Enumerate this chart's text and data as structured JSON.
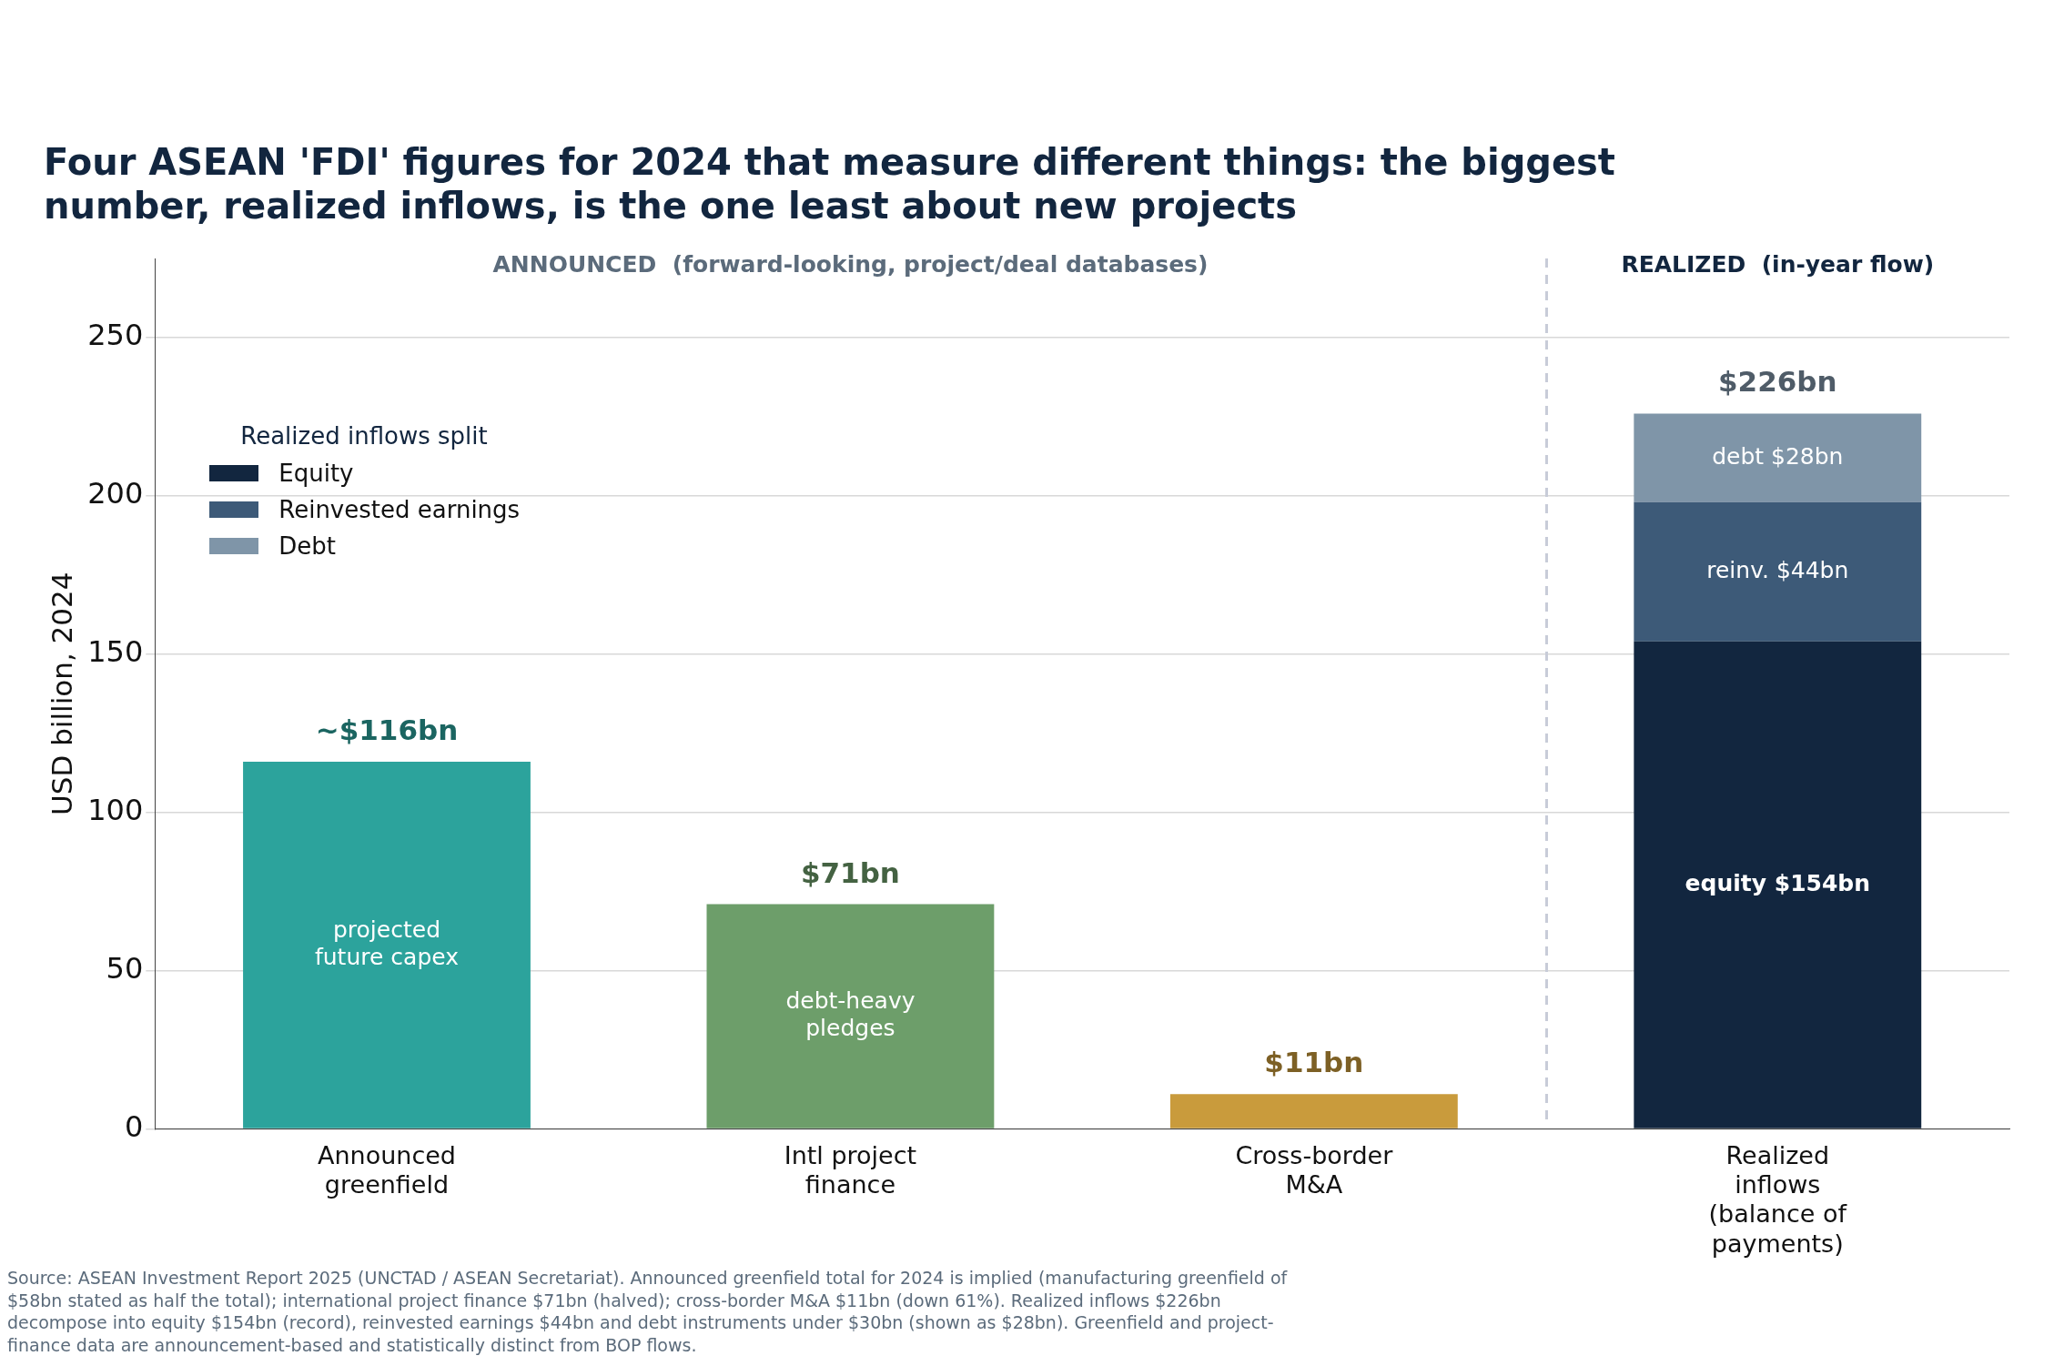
{
  "chart_data": {
    "type": "bar",
    "title": "Four ASEAN 'FDI' figures for 2024 that measure different things: the biggest number, realized inflows, is the one least about new projects",
    "ylabel": "USD billion, 2024",
    "legend_title": "Realized inflows split",
    "categories": [
      "Announced greenfield",
      "Intl project finance",
      "Cross-border M&A",
      "Realized inflows (balance of payments)"
    ],
    "series": [
      {
        "colors": [
          "#2ca39c",
          "#6d9e6a",
          "#c99b3c",
          "#2ca39c"
        ],
        "values": [
          116,
          71,
          11,
          null
        ]
      },
      {
        "name": "Equity",
        "color": "#12263f",
        "values": [
          null,
          null,
          null,
          154
        ],
        "value_labels": [
          null,
          null,
          null,
          "equity $154bn"
        ]
      },
      {
        "name": "Reinvested earnings",
        "color": "#3d5a78",
        "values": [
          null,
          null,
          null,
          44
        ],
        "value_labels": [
          null,
          null,
          null,
          "reinv. $44bn"
        ]
      },
      {
        "name": "Debt",
        "color": "#7f95a8",
        "values": [
          null,
          null,
          null,
          28
        ],
        "value_labels": [
          null,
          null,
          null,
          "debt $28bn"
        ]
      }
    ],
    "stacked": true,
    "totals": [
      "~$116bn",
      "$71bn",
      "$11bn",
      "$226bn"
    ],
    "ylim": [
      0,
      275
    ],
    "yticks": [
      0,
      50,
      100,
      150,
      200,
      250
    ],
    "grid": "y",
    "legend": "top left",
    "annotations": [
      "projected future capex",
      "debt-heavy pledges",
      "ANNOUNCED  (forward-looking, project/deal databases)",
      "REALIZED  (in-year flow)",
      "Source: ASEAN Investment Report 2025 (UNCTAD / ASEAN Secretariat). Announced greenfield total for 2024 is implied (manufacturing greenfield of $58bn stated as half the total); international project finance $71bn (halved); cross-border M&A $11bn (down 61%). Realized inflows $226bn decompose into equity $154bn (record), reinvested earnings $44bn and debt instruments under $30bn (shown as $28bn). Greenfield and project-finance data are announcement-based and statistically distinct from BOP flows."
    ]
  }
}
